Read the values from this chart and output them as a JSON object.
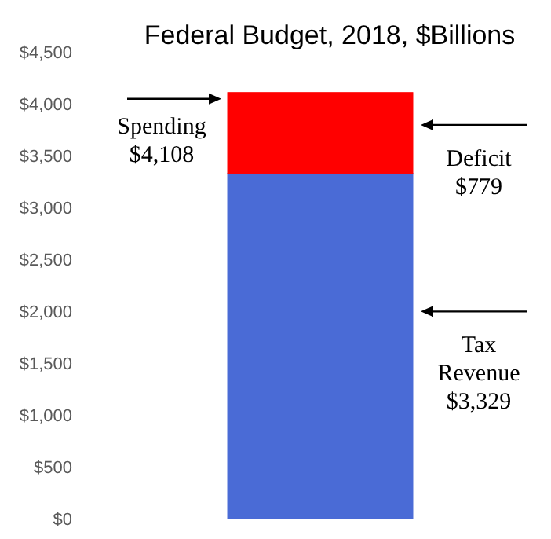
{
  "chart_data": {
    "type": "bar",
    "title": "Federal Budget, 2018, $Billions",
    "stacked": true,
    "categories": [
      null
    ],
    "series": [
      {
        "color": "#4a6bd6",
        "values": [
          3329
        ]
      },
      {
        "color": "#ff0000",
        "values": [
          779
        ]
      }
    ],
    "ylim": [
      0,
      4500
    ],
    "yticks": [
      {
        "value": 0,
        "label": "$0"
      },
      {
        "value": 500,
        "label": "$500"
      },
      {
        "value": 1000,
        "label": "$1,000"
      },
      {
        "value": 1500,
        "label": "$1,500"
      },
      {
        "value": 2000,
        "label": "$2,000"
      },
      {
        "value": 2500,
        "label": "$2,500"
      },
      {
        "value": 3000,
        "label": "$3,000"
      },
      {
        "value": 3500,
        "label": "$3,500"
      },
      {
        "value": 4000,
        "label": "$4,000"
      },
      {
        "value": 4500,
        "label": "$4,500"
      }
    ],
    "annotations": [
      "Spending\n$4,108",
      "Deficit\n$779",
      "Tax\nRevenue\n$3,329"
    ]
  }
}
